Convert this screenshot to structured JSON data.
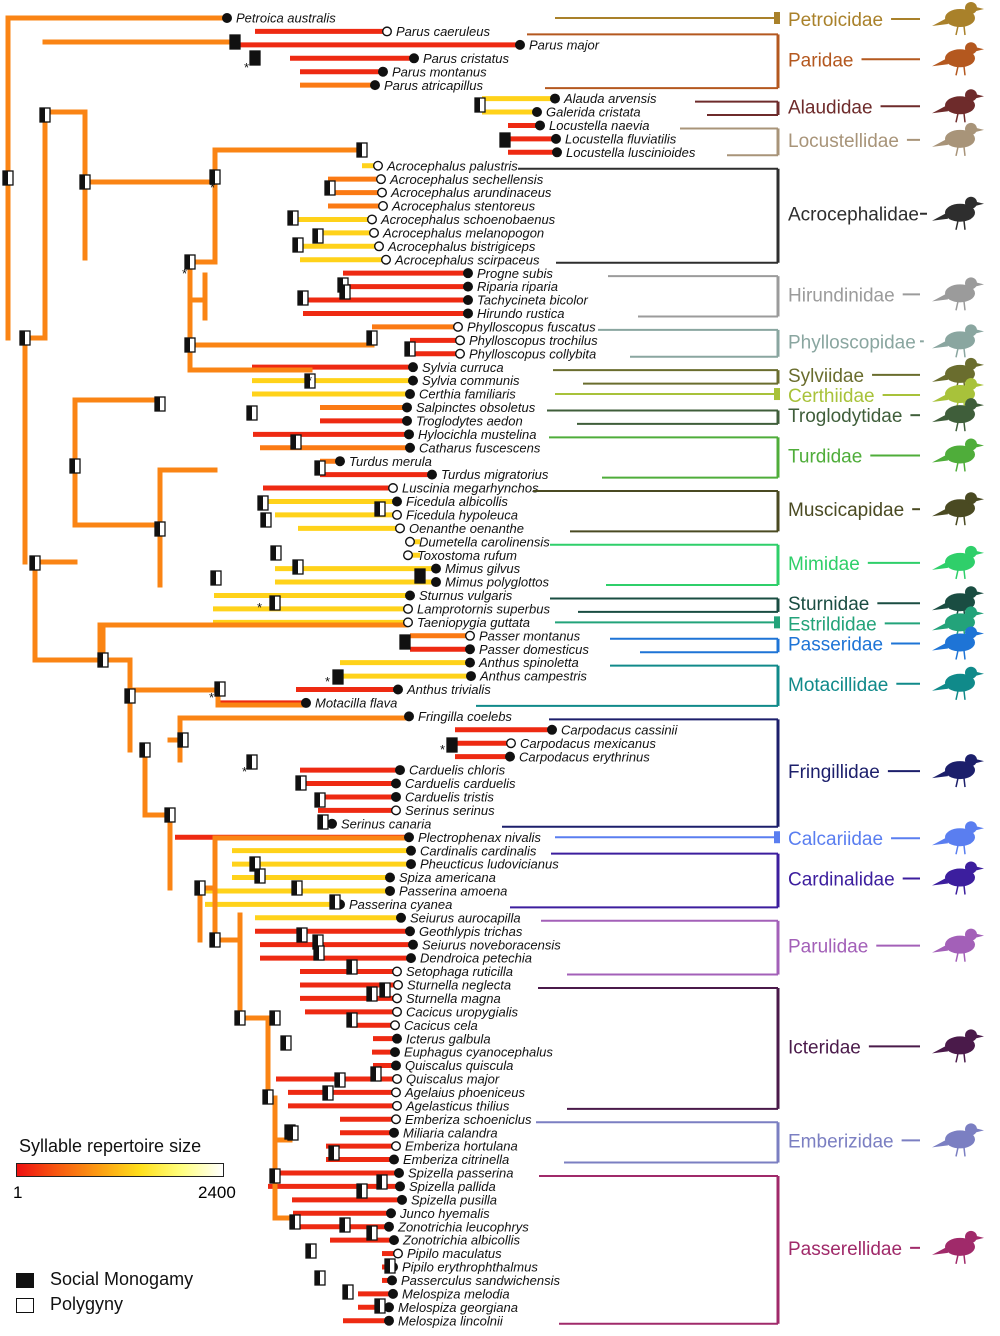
{
  "legend": {
    "title": "Syllable repertoire size",
    "min_label": "1",
    "max_label": "2400",
    "monogamy_label": "Social Monogamy",
    "polygyny_label": "Polygyny"
  },
  "families": [
    {
      "name": "Petroicidae",
      "color": "#a9812a",
      "species": [
        "Petroica australis"
      ]
    },
    {
      "name": "Paridae",
      "color": "#b4581f",
      "species": [
        "Parus caeruleus",
        "Parus major",
        "Parus cristatus",
        "Parus montanus",
        "Parus atricapillus"
      ]
    },
    {
      "name": "Alaudidae",
      "color": "#6e2b2b",
      "species": [
        "Alauda arvensis",
        "Galerida cristata"
      ]
    },
    {
      "name": "Locustellidae",
      "color": "#a89479",
      "species": [
        "Locustella naevia",
        "Locustella fluviatilis",
        "Locustella luscinioides"
      ]
    },
    {
      "name": "Acrocephalidae",
      "color": "#2e2e2e",
      "species": [
        "Acrocephalus palustris",
        "Acrocephalus sechellensis",
        "Acrocephalus arundinaceus",
        "Acrocephalus stentoreus",
        "Acrocephalus schoenobaenus",
        "Acrocephalus melanopogon",
        "Acrocephalus bistrigiceps",
        "Acrocephalus scirpaceus"
      ]
    },
    {
      "name": "Hirundinidae",
      "color": "#9b9b9b",
      "species": [
        "Progne subis",
        "Riparia riparia",
        "Tachycineta bicolor",
        "Hirundo rustica"
      ]
    },
    {
      "name": "Phylloscopidae",
      "color": "#8aa6a0",
      "species": [
        "Phylloscopus fuscatus",
        "Phylloscopus trochilus",
        "Phylloscopus collybita"
      ]
    },
    {
      "name": "Sylviidae",
      "color": "#6a6d2e",
      "species": [
        "Sylvia curruca",
        "Sylvia communis"
      ]
    },
    {
      "name": "Certhiidae",
      "color": "#a8c23a",
      "species": [
        "Certhia familiaris"
      ]
    },
    {
      "name": "Troglodytidae",
      "color": "#3f5e3a",
      "species": [
        "Salpinctes obsoletus",
        "Troglodytes aedon"
      ]
    },
    {
      "name": "Turdidae",
      "color": "#4fad3a",
      "species": [
        "Hylocichla mustelina",
        "Catharus fuscescens",
        "Turdus merula",
        "Turdus migratorius"
      ]
    },
    {
      "name": "Muscicapidae",
      "color": "#4a4a22",
      "species": [
        "Luscinia megarhynchos",
        "Ficedula albicollis",
        "Ficedula hypoleuca",
        "Oenanthe oenanthe"
      ]
    },
    {
      "name": "Mimidae",
      "color": "#2fcf6a",
      "species": [
        "Dumetella carolinensis",
        "Toxostoma rufum",
        "Mimus gilvus",
        "Mimus polyglottos"
      ]
    },
    {
      "name": "Sturnidae",
      "color": "#1a4d42",
      "species": [
        "Sturnus vulgaris",
        "Lamprotornis superbus"
      ]
    },
    {
      "name": "Estrildidae",
      "color": "#23a37a",
      "species": [
        "Taeniopygia guttata"
      ]
    },
    {
      "name": "Passeridae",
      "color": "#1e74d6",
      "species": [
        "Passer montanus",
        "Passer domesticus"
      ]
    },
    {
      "name": "Motacillidae",
      "color": "#108a8a",
      "species": [
        "Anthus spinoletta",
        "Anthus campestris",
        "Anthus trivialis",
        "Motacilla flava"
      ]
    },
    {
      "name": "Fringillidae",
      "color": "#1c1f6b",
      "species": [
        "Fringilla coelebs",
        "Carpodacus cassinii",
        "Carpodacus mexicanus",
        "Carpodacus erythrinus",
        "Carduelis chloris",
        "Carduelis carduelis",
        "Carduelis tristis",
        "Serinus serinus",
        "Serinus canaria"
      ]
    },
    {
      "name": "Calcariidae",
      "color": "#5a7ef0",
      "species": [
        "Plectrophenax nivalis"
      ]
    },
    {
      "name": "Cardinalidae",
      "color": "#3c1e9e",
      "species": [
        "Cardinalis cardinalis",
        "Pheucticus ludovicianus",
        "Spiza americana",
        "Passerina amoena",
        "Passerina cyanea"
      ]
    },
    {
      "name": "Parulidae",
      "color": "#a360b8",
      "species": [
        "Seiurus aurocapilla",
        "Geothlypis trichas",
        "Seiurus noveboracensis",
        "Dendroica petechia",
        "Setophaga ruticilla"
      ]
    },
    {
      "name": "Icteridae",
      "color": "#4a1a4a",
      "species": [
        "Sturnella neglecta",
        "Sturnella magna",
        "Cacicus uropygialis",
        "Cacicus cela",
        "Icterus galbula",
        "Euphagus cyanocephalus",
        "Quiscalus quiscula",
        "Quiscalus major",
        "Agelaius phoeniceus",
        "Agelasticus thilius"
      ]
    },
    {
      "name": "Emberizidae",
      "color": "#7b7fc2",
      "species": [
        "Emberiza schoeniclus",
        "Miliaria calandra",
        "Emberiza hortulana",
        "Emberiza citrinella"
      ]
    },
    {
      "name": "Passerellidae",
      "color": "#a02a6a",
      "species": [
        "Spizella passerina",
        "Spizella pallida",
        "Spizella pusilla",
        "Junco hyemalis",
        "Zonotrichia leucophrys",
        "Zonotrichia albicollis",
        "Pipilo maculatus",
        "Pipilo erythrophthalmus",
        "Passerculus sandwichensis",
        "Melospiza melodia",
        "Melospiza georgiana",
        "Melospiza lincolnii"
      ]
    }
  ]
}
